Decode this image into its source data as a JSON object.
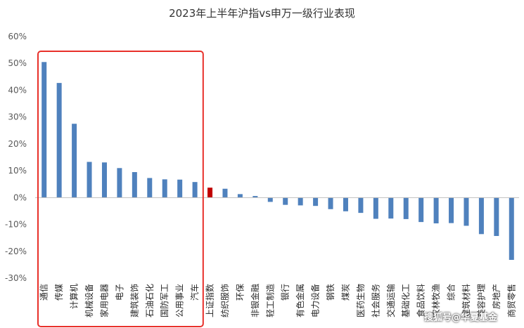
{
  "chart_data": {
    "type": "bar",
    "title": "2023年上半年沪指vs申万一级行业表现",
    "xlabel": "",
    "ylabel": "",
    "ylim": [
      -30,
      60
    ],
    "yticks": [
      "60%",
      "50%",
      "40%",
      "30%",
      "20%",
      "10%",
      "0%",
      "-10%",
      "-20%",
      "-30%"
    ],
    "ytick_values": [
      60,
      50,
      40,
      30,
      20,
      10,
      0,
      -10,
      -20,
      -30
    ],
    "grid": false,
    "highlight_box": {
      "from_category": "通信",
      "to_category": "汽车",
      "color": "#e8302a"
    },
    "bar_color": "#4f81bd",
    "highlight_color": "#c00000",
    "highlight_category": "上证指数",
    "categories": [
      "通信",
      "传媒",
      "计算机",
      "机械设备",
      "家用电器",
      "电子",
      "建筑装饰",
      "石油石化",
      "国防军工",
      "公用事业",
      "汽车",
      "上证指数",
      "纺织服饰",
      "环保",
      "非银金融",
      "轻工制造",
      "银行",
      "有色金属",
      "电力设备",
      "钢铁",
      "煤炭",
      "医药生物",
      "社会服务",
      "交通运输",
      "基础化工",
      "食品饮料",
      "农林牧渔",
      "综合",
      "建筑材料",
      "美容护理",
      "房地产",
      "商贸零售"
    ],
    "values": [
      50.5,
      42.7,
      27.5,
      13.3,
      13.1,
      11.0,
      9.5,
      7.3,
      6.8,
      6.7,
      5.8,
      3.7,
      3.3,
      1.3,
      0.6,
      -1.6,
      -2.7,
      -2.9,
      -3.1,
      -4.3,
      -5.1,
      -5.7,
      -7.9,
      -7.8,
      -8.0,
      -9.1,
      -9.6,
      -9.5,
      -10.5,
      -13.6,
      -14.3,
      -23.2
    ]
  },
  "watermark": "搜狐号@华夏基金"
}
